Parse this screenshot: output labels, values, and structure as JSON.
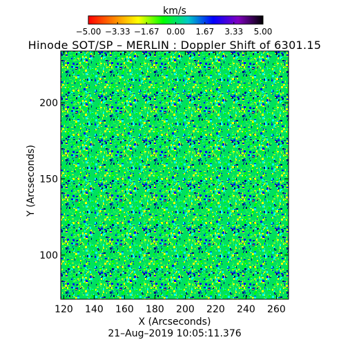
{
  "chart_data": {
    "type": "heatmap",
    "title": "Hinode SOT/SP – MERLIN : Doppler Shift of 6301.15",
    "xlabel": "X (Arcseconds)",
    "ylabel": "Y (Arcseconds)",
    "xlim": [
      118,
      268
    ],
    "ylim": [
      71,
      234
    ],
    "x_ticks": [
      120,
      140,
      160,
      180,
      200,
      220,
      240,
      260
    ],
    "y_ticks": [
      100,
      150,
      200
    ],
    "x_tick_labels": [
      "120",
      "140",
      "160",
      "180",
      "200",
      "220",
      "240",
      "260"
    ],
    "y_tick_labels": [
      "100",
      "150",
      "200"
    ],
    "timestamp": "21–Aug–2019 10:05:11.376",
    "colorbar": {
      "title": "km/s",
      "range": [
        -5.0,
        5.0
      ],
      "tick_values": [
        -5.0,
        -3.33,
        -1.67,
        0.0,
        1.67,
        3.33,
        5.0
      ],
      "tick_labels": [
        "−5.00",
        "−3.33",
        "−1.67",
        "0.00",
        "1.67",
        "3.33",
        "5.00"
      ],
      "colors": [
        "#ff0000",
        "#ff8000",
        "#ffff00",
        "#00ff00",
        "#00c8c8",
        "#0000ff",
        "#8000c0",
        "#000000"
      ]
    },
    "field": {
      "dominant_velocity_km_s": [
        -1.0,
        0.6
      ],
      "dominant_colors": [
        "#00ff00",
        "#00e060",
        "#40ff40"
      ],
      "speckle_colors": [
        "#ffff00",
        "#00ffff",
        "#0000ff",
        "#000080"
      ]
    }
  }
}
